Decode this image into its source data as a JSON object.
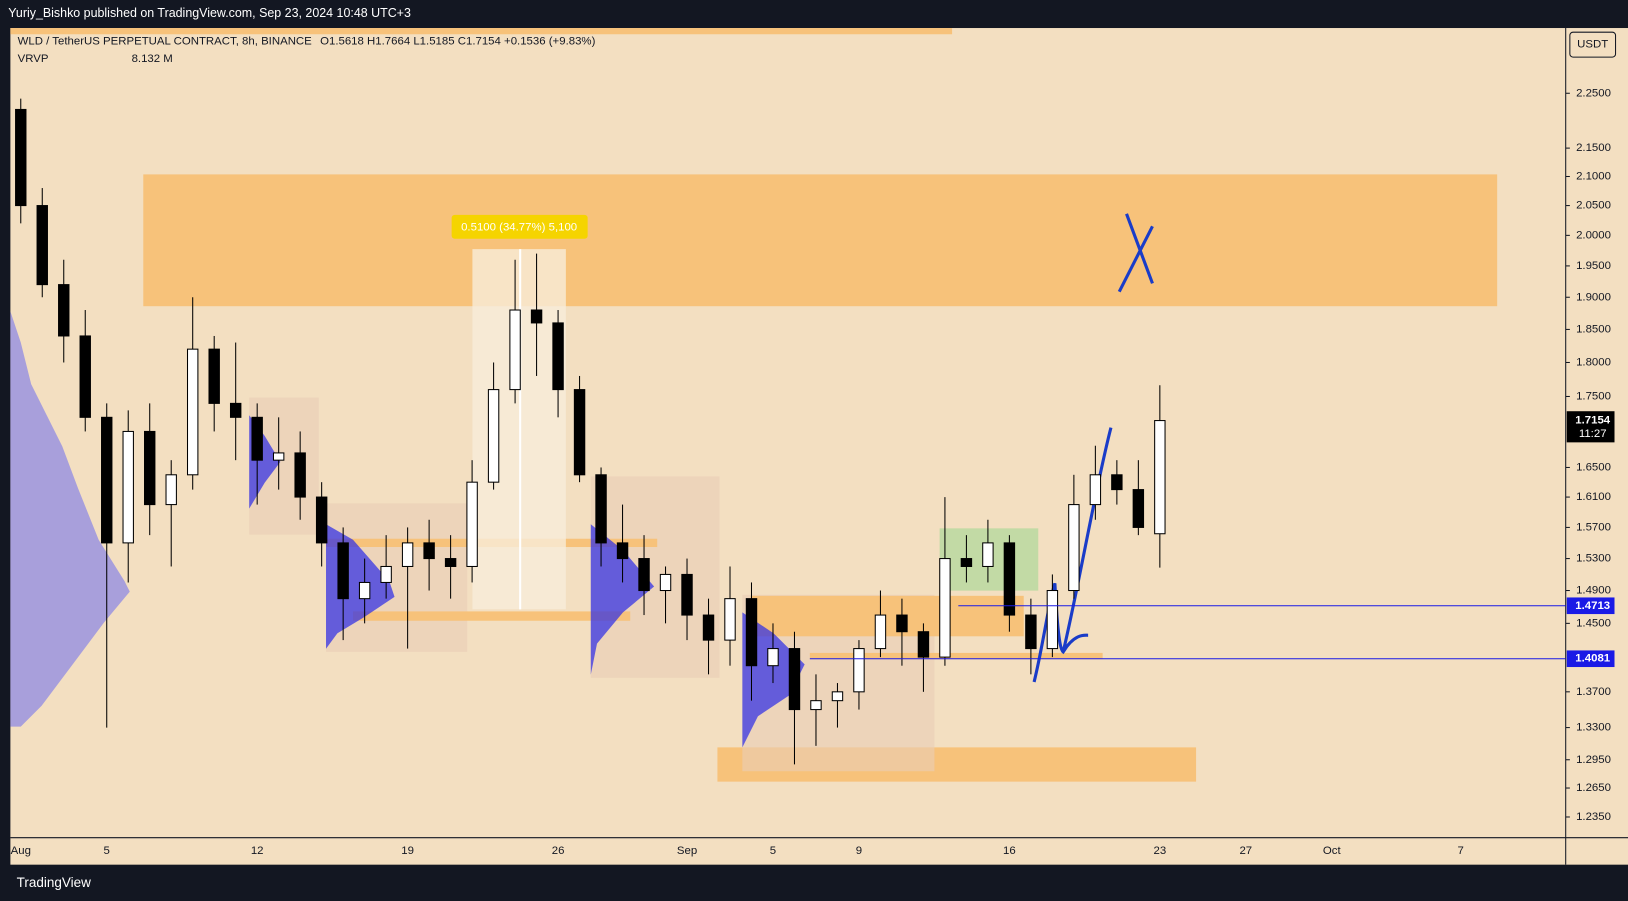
{
  "header": {
    "publisher": "Yuriy_Bishko published on TradingView.com, Sep 23, 2024 10:48 UTC+3",
    "footer": "TradingView",
    "currency_button": "USDT"
  },
  "chart_data": {
    "type": "candlestick",
    "title": "WLD / TetherUS PERPETUAL CONTRACT, 8h, BINANCE",
    "ohlc_legend": "O1.5618  H1.7664  L1.5185  C1.7154  +0.1536 (+9.83%)",
    "indicator": "VRVP",
    "indicator_value": "8.132 M",
    "measure_label": "0.5100 (34.77%) 5,100",
    "countdown": "11:27",
    "log_scale": true,
    "grid": false,
    "up_color": "#ffffff",
    "down_color": "#000000",
    "categories": [
      "Aug",
      null,
      null,
      null,
      "5",
      null,
      null,
      null,
      null,
      null,
      null,
      "12",
      null,
      null,
      null,
      null,
      null,
      null,
      "19",
      null,
      null,
      null,
      null,
      null,
      null,
      "26",
      null,
      null,
      null,
      null,
      null,
      "Sep",
      null,
      null,
      null,
      "5",
      null,
      null,
      null,
      "9",
      null,
      null,
      null,
      null,
      null,
      null,
      "16",
      null,
      null,
      null,
      null,
      null,
      null,
      "23",
      null,
      null,
      null,
      "27",
      null,
      null,
      null,
      "Oct",
      null,
      null,
      null,
      null,
      null,
      "7",
      null,
      null,
      null
    ],
    "open": [
      2.22,
      2.05,
      1.92,
      1.84,
      1.72,
      1.55,
      1.7,
      1.6,
      1.64,
      1.82,
      1.74,
      1.72,
      1.66,
      1.67,
      1.61,
      1.55,
      1.48,
      1.5,
      1.52,
      1.55,
      1.53,
      1.52,
      1.63,
      1.76,
      1.88,
      1.86,
      1.76,
      1.64,
      1.55,
      1.53,
      1.49,
      1.51,
      1.46,
      1.43,
      1.48,
      1.4,
      1.42,
      1.35,
      1.36,
      1.37,
      1.42,
      1.46,
      1.44,
      1.41,
      1.53,
      1.52,
      1.55,
      1.46,
      1.42,
      1.49,
      1.6,
      1.64,
      1.62,
      1.5618,
      null,
      null,
      null,
      null,
      null,
      null,
      null,
      null,
      null,
      null,
      null,
      null,
      null,
      null,
      null,
      null,
      null
    ],
    "high": [
      2.24,
      2.08,
      1.96,
      1.88,
      1.74,
      1.73,
      1.74,
      1.66,
      1.9,
      1.84,
      1.83,
      1.74,
      1.72,
      1.7,
      1.63,
      1.57,
      1.53,
      1.56,
      1.57,
      1.58,
      1.56,
      1.66,
      1.8,
      1.96,
      1.97,
      1.88,
      1.78,
      1.65,
      1.6,
      1.56,
      1.52,
      1.53,
      1.48,
      1.52,
      1.5,
      1.45,
      1.44,
      1.39,
      1.38,
      1.43,
      1.49,
      1.48,
      1.45,
      1.61,
      1.56,
      1.58,
      1.56,
      1.48,
      1.51,
      1.64,
      1.68,
      1.66,
      1.66,
      1.7664,
      null,
      null,
      null,
      null,
      null,
      null,
      null,
      null,
      null,
      null,
      null,
      null,
      null,
      null,
      null,
      null,
      null
    ],
    "low": [
      2.02,
      1.9,
      1.8,
      1.7,
      1.33,
      1.5,
      1.56,
      1.52,
      1.62,
      1.7,
      1.66,
      1.6,
      1.62,
      1.58,
      1.52,
      1.43,
      1.45,
      1.48,
      1.42,
      1.49,
      1.48,
      1.5,
      1.62,
      1.74,
      1.78,
      1.72,
      1.63,
      1.52,
      1.5,
      1.46,
      1.45,
      1.43,
      1.39,
      1.4,
      1.36,
      1.38,
      1.29,
      1.31,
      1.33,
      1.35,
      1.41,
      1.4,
      1.37,
      1.4,
      1.5,
      1.5,
      1.44,
      1.39,
      1.41,
      1.48,
      1.58,
      1.6,
      1.56,
      1.5185,
      null,
      null,
      null,
      null,
      null,
      null,
      null,
      null,
      null,
      null,
      null,
      null,
      null,
      null,
      null,
      null,
      null
    ],
    "close": [
      2.05,
      1.92,
      1.84,
      1.72,
      1.55,
      1.7,
      1.6,
      1.64,
      1.82,
      1.74,
      1.72,
      1.66,
      1.67,
      1.61,
      1.55,
      1.48,
      1.5,
      1.52,
      1.55,
      1.53,
      1.52,
      1.63,
      1.76,
      1.88,
      1.86,
      1.76,
      1.64,
      1.55,
      1.53,
      1.49,
      1.51,
      1.46,
      1.43,
      1.48,
      1.4,
      1.42,
      1.35,
      1.36,
      1.37,
      1.42,
      1.46,
      1.44,
      1.41,
      1.53,
      1.52,
      1.55,
      1.46,
      1.42,
      1.49,
      1.6,
      1.64,
      1.62,
      1.57,
      1.7154,
      null,
      null,
      null,
      null,
      null,
      null,
      null,
      null,
      null,
      null,
      null,
      null,
      null,
      null,
      null,
      null,
      null
    ],
    "ylim": [
      1.214,
      2.375
    ],
    "yticks": [
      {
        "value": 1.235,
        "label": "1.2350"
      },
      {
        "value": 1.265,
        "label": "1.2650"
      },
      {
        "value": 1.295,
        "label": "1.2950"
      },
      {
        "value": 1.33,
        "label": "1.3300"
      },
      {
        "value": 1.37,
        "label": "1.3700"
      },
      {
        "value": 1.45,
        "label": "1.4500"
      },
      {
        "value": 1.49,
        "label": "1.4900"
      },
      {
        "value": 1.53,
        "label": "1.5300"
      },
      {
        "value": 1.57,
        "label": "1.5700"
      },
      {
        "value": 1.61,
        "label": "1.6100"
      },
      {
        "value": 1.65,
        "label": "1.6500"
      },
      {
        "value": 1.75,
        "label": "1.7500"
      },
      {
        "value": 1.8,
        "label": "1.8000"
      },
      {
        "value": 1.85,
        "label": "1.8500"
      },
      {
        "value": 1.9,
        "label": "1.9000"
      },
      {
        "value": 1.95,
        "label": "1.9500"
      },
      {
        "value": 2,
        "label": "2.0000"
      },
      {
        "value": 2.05,
        "label": "2.0500"
      },
      {
        "value": 2.1,
        "label": "2.1000"
      },
      {
        "value": 2.15,
        "label": "2.1500"
      },
      {
        "value": 2.25,
        "label": "2.2500"
      }
    ],
    "price_lines": [
      {
        "value": 1.4713,
        "color": "#1a1ae6"
      },
      {
        "value": 1.4081,
        "color": "#1a1ae6"
      }
    ]
  }
}
